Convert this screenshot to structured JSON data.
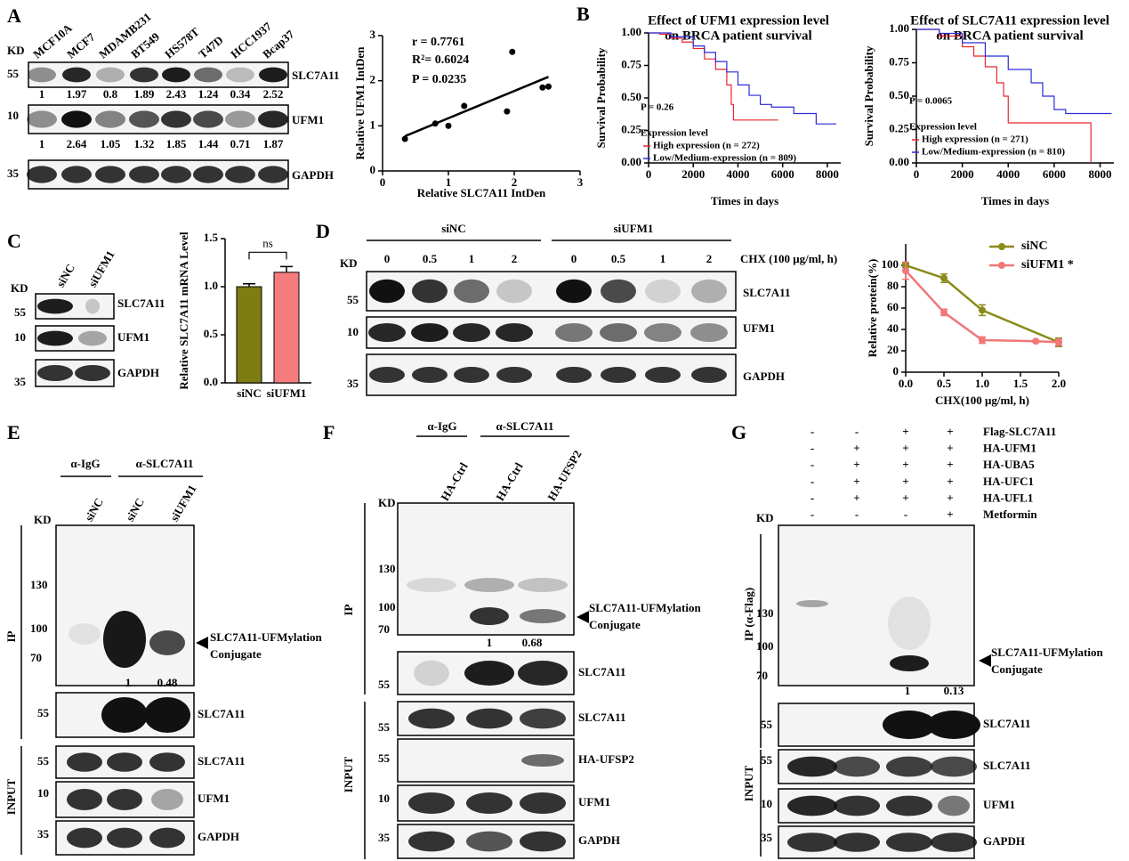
{
  "panels": {
    "A": {
      "letter": "A",
      "kd": "KD",
      "lanes": [
        "MCF10A",
        "MCF7",
        "MDAMB231",
        "BT549",
        "HS578T",
        "T47D",
        "HCC1937",
        "Bcap37"
      ],
      "markers": [
        "55",
        "10",
        "35"
      ],
      "proteins": [
        "SLC7A11",
        "UFM1",
        "GAPDH"
      ],
      "quant": [
        [
          "1",
          "1.97",
          "0.8",
          "1.89",
          "2.43",
          "1.24",
          "0.34",
          "2.52"
        ],
        [
          "1",
          "2.64",
          "1.05",
          "1.32",
          "1.85",
          "1.44",
          "0.71",
          "1.87"
        ]
      ]
    },
    "B": {
      "letter": "B"
    },
    "C": {
      "letter": "C",
      "kd": "KD",
      "lanes": [
        "siNC",
        "siUFM1"
      ],
      "markers": [
        "55",
        "10",
        "35"
      ],
      "proteins": [
        "SLC7A11",
        "UFM1",
        "GAPDH"
      ]
    },
    "D": {
      "letter": "D",
      "kd": "KD",
      "groups": [
        "siNC",
        "siUFM1"
      ],
      "lanes": [
        "0",
        "0.5",
        "1",
        "2",
        "0",
        "0.5",
        "1",
        "2"
      ],
      "treatment": "CHX (100 μg/ml, h)",
      "markers": [
        "55",
        "10",
        "35"
      ],
      "proteins": [
        "SLC7A11",
        "UFM1",
        "GAPDH"
      ]
    },
    "E": {
      "letter": "E",
      "kd": "KD",
      "groups": [
        "α-IgG",
        "α-SLC7A11"
      ],
      "lanes": [
        "siNC",
        "siNC",
        "siUFM1"
      ],
      "ip": "IP",
      "input": "INPUT",
      "ip_markers": [
        "130",
        "100",
        "70"
      ],
      "conjugate": [
        "SLC7A11-UFMylation",
        "Conjugate"
      ],
      "quant": [
        "1",
        "0.48"
      ],
      "blots": [
        {
          "marker": "55",
          "protein": "SLC7A11"
        },
        {
          "marker": "55",
          "protein": "SLC7A11"
        },
        {
          "marker": "10",
          "protein": "UFM1"
        },
        {
          "marker": "35",
          "protein": "GAPDH"
        }
      ]
    },
    "F": {
      "letter": "F",
      "kd": "KD",
      "groups": [
        "α-IgG",
        "α-SLC7A11"
      ],
      "lanes": [
        "HA-Ctrl",
        "HA-Ctrl",
        "HA-UFSP2"
      ],
      "ip": "IP",
      "input": "INPUT",
      "ip_markers": [
        "130",
        "100",
        "70"
      ],
      "conjugate": [
        "SLC7A11-UFMylation",
        "Conjugate"
      ],
      "quant": [
        "1",
        "0.68"
      ],
      "blots": [
        {
          "marker": "55",
          "protein": "SLC7A11"
        },
        {
          "marker": "55",
          "protein": "SLC7A11"
        },
        {
          "marker": "55",
          "protein": "HA-UFSP2"
        },
        {
          "marker": "10",
          "protein": "UFM1"
        },
        {
          "marker": "35",
          "protein": "GAPDH"
        }
      ]
    },
    "G": {
      "letter": "G",
      "kd": "KD",
      "conditions": [
        {
          "label": "Flag-SLC7A11",
          "signs": [
            "-",
            "-",
            "+",
            "+"
          ]
        },
        {
          "label": "HA-UFM1",
          "signs": [
            "-",
            "+",
            "+",
            "+"
          ]
        },
        {
          "label": "HA-UBA5",
          "signs": [
            "-",
            "+",
            "+",
            "+"
          ]
        },
        {
          "label": "HA-UFC1",
          "signs": [
            "-",
            "+",
            "+",
            "+"
          ]
        },
        {
          "label": "HA-UFL1",
          "signs": [
            "-",
            "+",
            "+",
            "+"
          ]
        },
        {
          "label": "Metformin",
          "signs": [
            "-",
            "-",
            "-",
            "+"
          ]
        }
      ],
      "ip": "IP (α-Flag)",
      "input": "INPUT",
      "ip_markers": [
        "130",
        "100",
        "70"
      ],
      "conjugate": [
        "SLC7A11-UFMylation",
        "Conjugate"
      ],
      "quant": [
        "1",
        "0.13"
      ],
      "blots": [
        {
          "marker": "55",
          "protein": "SLC7A11"
        },
        {
          "marker": "55",
          "protein": "SLC7A11"
        },
        {
          "marker": "10",
          "protein": "UFM1"
        },
        {
          "marker": "35",
          "protein": "GAPDH"
        }
      ]
    }
  },
  "chart_data": [
    {
      "type": "scatter",
      "x": [
        1,
        1.97,
        0.8,
        1.89,
        2.43,
        1.24,
        0.34,
        2.52
      ],
      "y": [
        1,
        2.64,
        1.05,
        1.32,
        1.85,
        1.44,
        0.71,
        1.87
      ],
      "color": "#000000",
      "fit_line": true,
      "xlabel": "Relative  SLC7A11  IntDen",
      "ylabel": "Relative UFM1 IntDen",
      "xlim": [
        0,
        3
      ],
      "ylim": [
        0,
        3
      ],
      "xticks": [
        0,
        1,
        2,
        3
      ],
      "yticks": [
        0,
        1,
        2,
        3
      ],
      "annotations": [
        "r = 0.7761",
        "R²= 0.6024",
        "P = 0.0235"
      ]
    },
    {
      "type": "step",
      "title": [
        "Effect of UFM1 expression level",
        "on BRCA patient  survival"
      ],
      "xlabel": "Times in days",
      "ylabel": "Survival  Probability",
      "xlim": [
        0,
        8600
      ],
      "ylim": [
        0,
        1
      ],
      "xticks": [
        0,
        2000,
        4000,
        6000,
        8000
      ],
      "yticks": [
        {
          "value": 0,
          "label": "0.00"
        },
        {
          "value": 0.25,
          "label": "0.25"
        },
        {
          "value": 0.5,
          "label": "0.50"
        },
        {
          "value": 0.75,
          "label": "0.75"
        },
        {
          "value": 1,
          "label": "1.00"
        }
      ],
      "annotation": "P = 0.26",
      "legend_title": "Expression level",
      "series": [
        {
          "name": "High expression (n = 272)",
          "color": "#e8262b",
          "x": [
            0,
            500,
            1000,
            1500,
            2000,
            2500,
            3000,
            3500,
            3700,
            3800,
            5800
          ],
          "values": [
            1,
            0.99,
            0.96,
            0.93,
            0.88,
            0.8,
            0.72,
            0.6,
            0.45,
            0.33,
            0.33
          ]
        },
        {
          "name": "Low/Medium-expression (n = 809)",
          "color": "#2b2bd9",
          "x": [
            0,
            1000,
            2000,
            2500,
            3000,
            3500,
            4000,
            4500,
            5000,
            5500,
            6500,
            7500,
            8400
          ],
          "values": [
            1,
            0.97,
            0.9,
            0.85,
            0.78,
            0.7,
            0.6,
            0.52,
            0.45,
            0.43,
            0.38,
            0.3,
            0.3
          ]
        }
      ]
    },
    {
      "type": "step",
      "title": [
        "Effect of SLC7A11 expression level",
        "on BRCA patient  survival"
      ],
      "xlabel": "Times in days",
      "ylabel": "Survival  Probability",
      "xlim": [
        0,
        8600
      ],
      "ylim": [
        0,
        1
      ],
      "xticks": [
        0,
        2000,
        4000,
        6000,
        8000
      ],
      "yticks": [
        {
          "value": 0,
          "label": "0.00"
        },
        {
          "value": 0.25,
          "label": "0.25"
        },
        {
          "value": 0.5,
          "label": "0.50"
        },
        {
          "value": 0.75,
          "label": "0.75"
        },
        {
          "value": 1,
          "label": "1.00"
        }
      ],
      "annotation": "P = 0.0065",
      "legend_title": "Expression level",
      "series": [
        {
          "name": "High expression (n = 271)",
          "color": "#e8262b",
          "x": [
            0,
            1000,
            2000,
            2500,
            3000,
            3500,
            3800,
            4000,
            7600,
            7600
          ],
          "values": [
            1,
            0.95,
            0.87,
            0.8,
            0.72,
            0.6,
            0.5,
            0.3,
            0.3,
            0
          ]
        },
        {
          "name": "Low/Medium-expression (n = 810)",
          "color": "#2b2bd9",
          "x": [
            0,
            1000,
            2000,
            3000,
            4000,
            5000,
            5500,
            6000,
            6500,
            8500
          ],
          "values": [
            1,
            0.97,
            0.9,
            0.8,
            0.7,
            0.6,
            0.5,
            0.4,
            0.37,
            0.37
          ]
        }
      ]
    },
    {
      "type": "bar",
      "categories": [
        "siNC",
        "siUFM1"
      ],
      "values": [
        1.0,
        1.15
      ],
      "errors": [
        0.03,
        0.06
      ],
      "colors": [
        "#7d7d12",
        "#f47c7c"
      ],
      "ylabel": "Relative SLC7A11 mRNA Level",
      "ylim": [
        0,
        1.5
      ],
      "yticks": [
        {
          "value": 0,
          "label": "0.0"
        },
        {
          "value": 0.5,
          "label": "0.5"
        },
        {
          "value": 1,
          "label": "1.0"
        },
        {
          "value": 1.5,
          "label": "1.5"
        }
      ],
      "annotation": "ns"
    },
    {
      "type": "line",
      "xlabel": "CHX(100 μg/ml, h)",
      "ylabel": "Relative  protein(%)",
      "xlim": [
        0,
        2
      ],
      "ylim": [
        0,
        120
      ],
      "xticks": [
        {
          "value": 0,
          "label": "0.0"
        },
        {
          "value": 0.5,
          "label": "0.5"
        },
        {
          "value": 1,
          "label": "1.0"
        },
        {
          "value": 1.5,
          "label": "1.5"
        },
        {
          "value": 2,
          "label": "2.0"
        }
      ],
      "yticks": [
        0,
        20,
        40,
        60,
        80,
        100
      ],
      "series": [
        {
          "name": "siNC",
          "color": "#8b8b1a",
          "x": [
            0,
            0.5,
            1,
            2
          ],
          "values": [
            100,
            88,
            58,
            28
          ],
          "errors": [
            2,
            4,
            5,
            4
          ]
        },
        {
          "name": "siUFM1 *",
          "color": "#f07878",
          "x": [
            0,
            0.5,
            1,
            1.7,
            2
          ],
          "values": [
            95,
            56,
            30,
            29,
            28
          ],
          "errors": [
            8,
            3,
            3,
            1,
            3
          ]
        }
      ]
    }
  ]
}
